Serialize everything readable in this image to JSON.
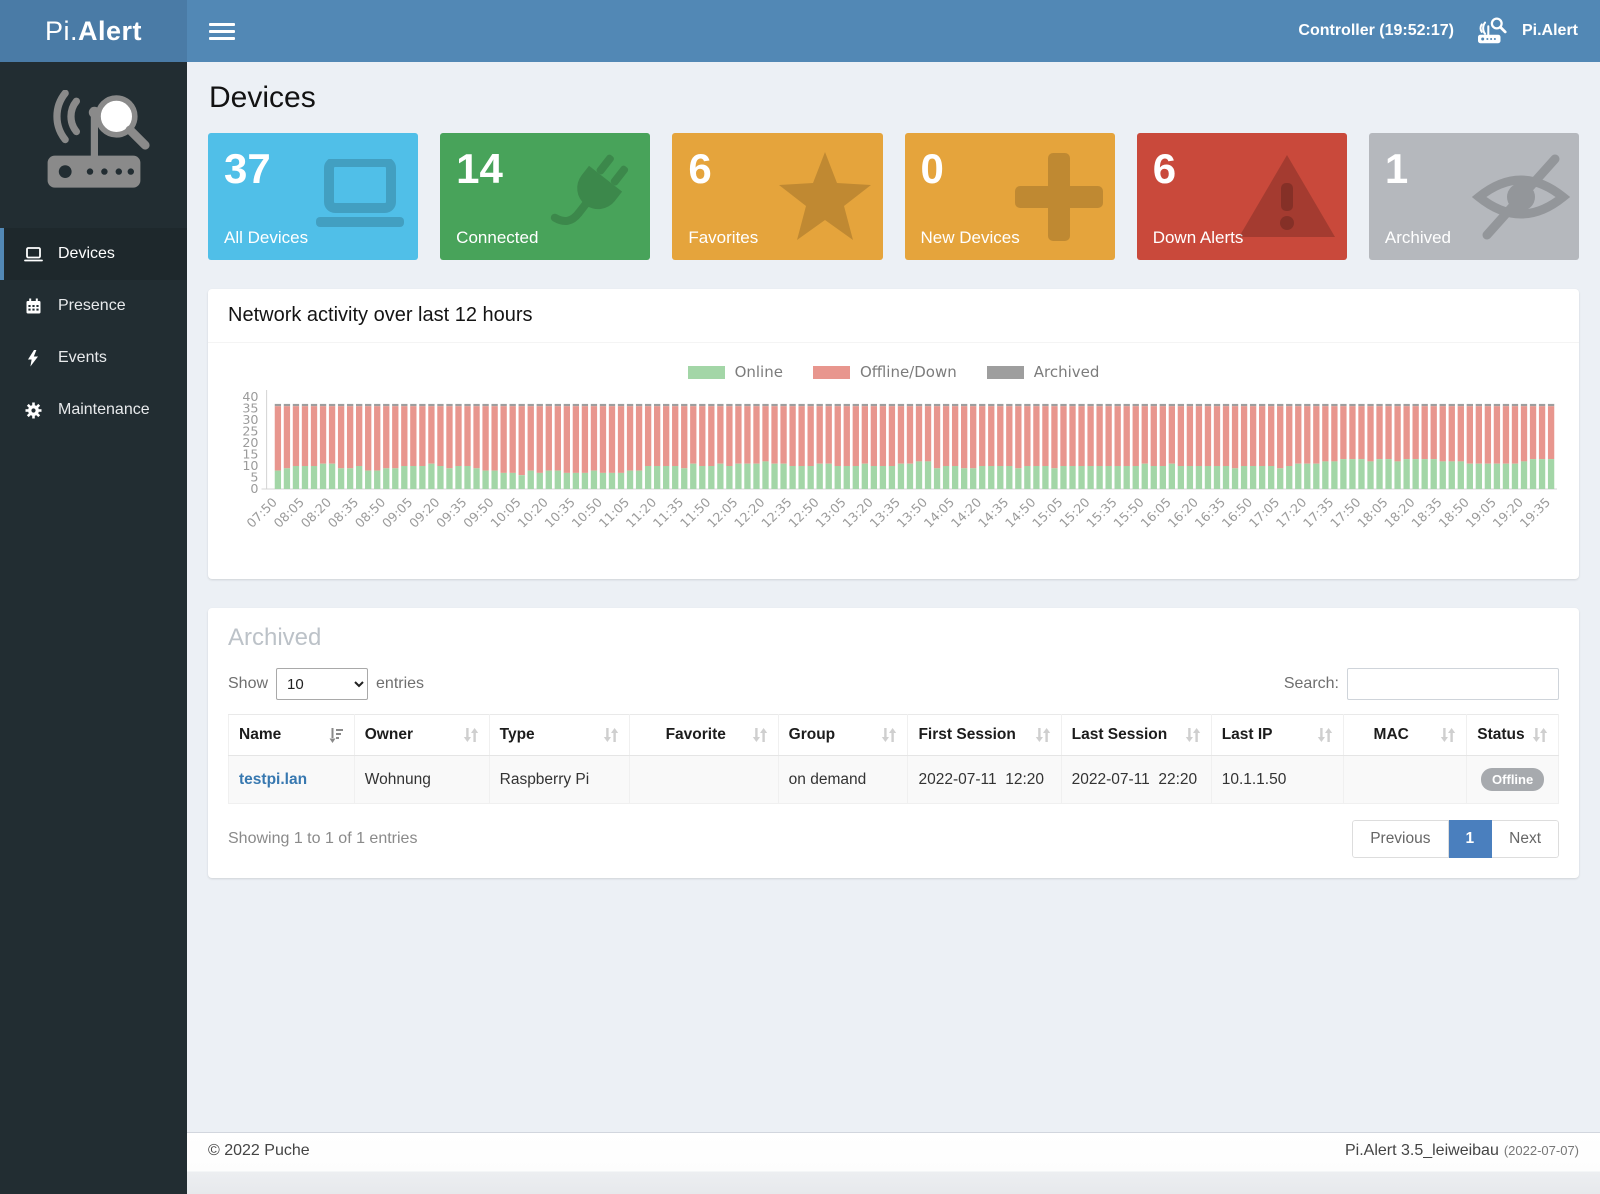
{
  "header": {
    "brand_light": "Pi.",
    "brand_bold": "Alert",
    "controller_label": "Controller (19:52:17)",
    "app_label": "Pi.Alert"
  },
  "sidebar": {
    "items": [
      {
        "label": "Devices",
        "active": true
      },
      {
        "label": "Presence",
        "active": false
      },
      {
        "label": "Events",
        "active": false
      },
      {
        "label": "Maintenance",
        "active": false
      }
    ]
  },
  "page": {
    "title": "Devices"
  },
  "cards": [
    {
      "value": "37",
      "label": "All Devices",
      "color": "#50BFE8",
      "icon": "laptop-icon"
    },
    {
      "value": "14",
      "label": "Connected",
      "color": "#48A35A",
      "icon": "plug-icon"
    },
    {
      "value": "6",
      "label": "Favorites",
      "color": "#E5A43C",
      "icon": "star-icon"
    },
    {
      "value": "0",
      "label": "New Devices",
      "color": "#E5A43C",
      "icon": "plus-icon"
    },
    {
      "value": "6",
      "label": "Down Alerts",
      "color": "#C9493B",
      "icon": "warning-icon"
    },
    {
      "value": "1",
      "label": "Archived",
      "color": "#B5B8BD",
      "icon": "eye-slash-icon"
    }
  ],
  "chart_panel": {
    "title": "Network activity over last 12 hours"
  },
  "chart_data": {
    "type": "bar",
    "stacked": true,
    "title": "Network activity over last 12 hours",
    "legend": [
      "Online",
      "Offline/Down",
      "Archived"
    ],
    "legend_position": "top-center",
    "colors": {
      "online": "#A3D6A7",
      "offline": "#E8968E",
      "archived": "#9E9E9E"
    },
    "ylim": [
      0,
      40
    ],
    "yticks": [
      0,
      5,
      10,
      15,
      20,
      25,
      30,
      35,
      40
    ],
    "grid": false,
    "total_devices_per_bar": 37,
    "archived_per_bar": 1,
    "bar_interval_minutes": 5,
    "bars_per_tick": 3,
    "x_tick_labels": [
      "07:50",
      "08:05",
      "08:20",
      "08:35",
      "08:50",
      "09:05",
      "09:20",
      "09:35",
      "09:50",
      "10:05",
      "10:20",
      "10:35",
      "10:50",
      "11:05",
      "11:20",
      "11:35",
      "11:50",
      "12:05",
      "12:20",
      "12:35",
      "12:50",
      "13:05",
      "13:20",
      "13:35",
      "13:50",
      "14:05",
      "14:20",
      "14:35",
      "14:50",
      "15:05",
      "15:20",
      "15:35",
      "15:50",
      "16:05",
      "16:20",
      "16:35",
      "16:50",
      "17:05",
      "17:20",
      "17:35",
      "17:50",
      "18:05",
      "18:20",
      "18:35",
      "18:50",
      "19:05",
      "19:20",
      "19:35"
    ],
    "series": [
      {
        "name": "Online",
        "values": [
          8,
          9,
          10,
          10,
          10,
          11,
          11,
          9,
          9,
          10,
          8,
          8,
          9,
          9,
          10,
          10,
          10,
          11,
          10,
          9,
          10,
          10,
          9,
          8,
          8,
          7,
          7,
          6,
          8,
          7,
          8,
          8,
          7,
          7,
          7,
          8,
          7,
          7,
          7,
          8,
          8,
          10,
          10,
          10,
          10,
          9,
          11,
          10,
          10,
          11,
          10,
          11,
          11,
          11,
          12,
          11,
          11,
          10,
          10,
          10,
          11,
          11,
          10,
          10,
          10,
          11,
          10,
          10,
          10,
          11,
          11,
          12,
          12,
          9,
          10,
          10,
          9,
          9,
          10,
          10,
          10,
          10,
          9,
          10,
          10,
          10,
          9,
          10,
          10,
          10,
          10,
          10,
          10,
          10,
          10,
          10,
          11,
          10,
          10,
          11,
          10,
          10,
          10,
          10,
          10,
          10,
          9,
          10,
          10,
          10,
          10,
          9,
          10,
          11,
          11,
          11,
          12,
          12,
          13,
          13,
          13,
          12,
          13,
          13,
          12,
          13,
          13,
          13,
          13,
          12,
          12,
          12,
          11,
          11,
          11,
          11,
          11,
          11,
          12,
          13,
          13,
          13
        ]
      },
      {
        "name": "Offline/Down",
        "derivation": "36 minus Online for each bar"
      },
      {
        "name": "Archived",
        "constant": 1
      }
    ]
  },
  "table_panel": {
    "title": "Archived",
    "show_label": "Show",
    "page_length": "10",
    "entries_label": "entries",
    "search_label": "Search:",
    "search_value": "",
    "columns": [
      "Name",
      "Owner",
      "Type",
      "Favorite",
      "Group",
      "First Session",
      "Last Session",
      "Last IP",
      "MAC",
      "Status"
    ],
    "rows": [
      {
        "name": "testpi.lan",
        "owner": "Wohnung",
        "type": "Raspberry Pi",
        "favorite": "",
        "group": "on demand",
        "first_session": "2022-07-11  12:20",
        "last_session": "2022-07-11  22:20",
        "last_ip": "10.1.1.50",
        "mac": "",
        "status": "Offline"
      }
    ],
    "info": "Showing 1 to 1 of 1 entries",
    "pagination": {
      "previous": "Previous",
      "page": "1",
      "next": "Next"
    }
  },
  "footer": {
    "left": "© 2022 Puche",
    "right_main": "Pi.Alert  3.5_leiweibau",
    "right_sub": "(2022-07-07)"
  }
}
